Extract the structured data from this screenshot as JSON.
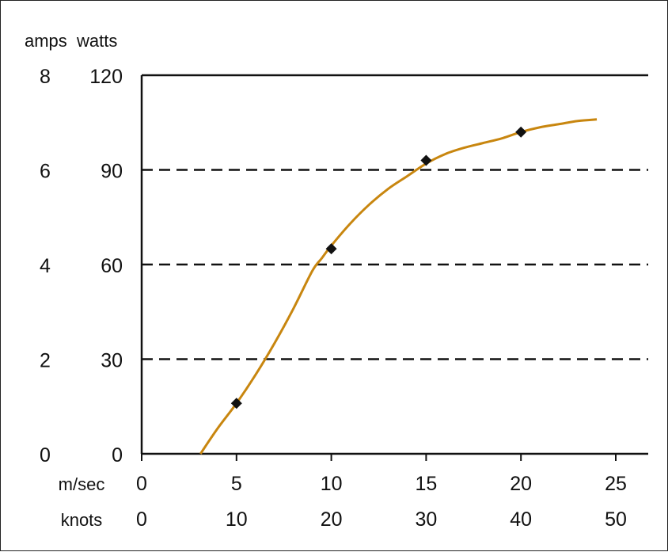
{
  "chart_data": {
    "type": "line",
    "title": "",
    "y_axis_headers": {
      "left": "amps",
      "right": "watts"
    },
    "amps_ticks": [
      "8",
      "6",
      "4",
      "2",
      "0"
    ],
    "watts_ticks": [
      "120",
      "90",
      "60",
      "30",
      "0"
    ],
    "ylim": [
      0,
      120
    ],
    "gridlines_watts": [
      30,
      60,
      90
    ],
    "x_axis_labels": {
      "top": "m/sec",
      "bottom": "knots"
    },
    "msec_ticks": [
      "0",
      "5",
      "10",
      "15",
      "20",
      "25"
    ],
    "knots_ticks": [
      "0",
      "10",
      "20",
      "30",
      "40",
      "50"
    ],
    "xlim": [
      0,
      26.5
    ],
    "series": [
      {
        "color": "#c8860f",
        "curve_x": [
          3.1,
          4,
          5,
          6,
          7,
          8,
          9,
          9.5,
          10,
          11,
          12,
          13,
          14,
          15,
          16,
          17,
          18,
          19,
          20,
          21,
          22,
          23,
          24
        ],
        "curve_y": [
          0,
          8,
          16,
          25,
          35,
          46,
          58,
          62,
          66,
          73,
          79,
          84,
          88,
          92,
          95,
          97,
          98.5,
          100,
          102,
          103.5,
          104.5,
          105.5,
          106
        ],
        "markers_x": [
          5,
          10,
          15,
          20
        ],
        "markers_y": [
          16,
          65,
          93,
          102
        ]
      }
    ],
    "grid": "dashed horizontal",
    "legend": "none"
  }
}
